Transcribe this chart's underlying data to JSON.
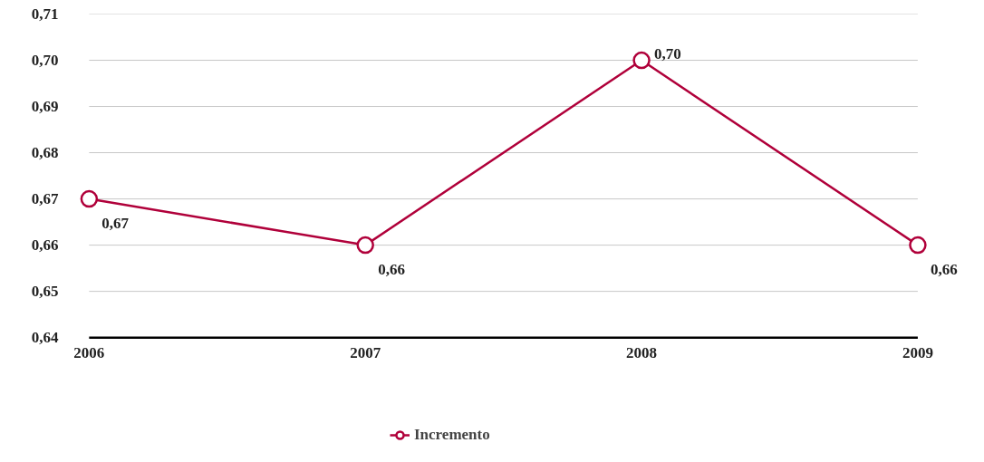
{
  "chart_data": {
    "type": "line",
    "categories": [
      "2006",
      "2007",
      "2008",
      "2009"
    ],
    "series": [
      {
        "name": "Incremento",
        "color": "#b0003a",
        "values": [
          0.67,
          0.66,
          0.7,
          0.66
        ],
        "value_labels": [
          "0,67",
          "0,66",
          "0,70",
          "0,66"
        ]
      }
    ],
    "ylim": [
      0.64,
      0.71
    ],
    "yticks": [
      {
        "value": 0.64,
        "label": "0,64"
      },
      {
        "value": 0.65,
        "label": "0,65"
      },
      {
        "value": 0.66,
        "label": "0,66"
      },
      {
        "value": 0.67,
        "label": "0,67"
      },
      {
        "value": 0.68,
        "label": "0,68"
      },
      {
        "value": 0.69,
        "label": "0,69"
      },
      {
        "value": 0.7,
        "label": "0,70"
      },
      {
        "value": 0.71,
        "label": "0,71"
      }
    ],
    "grid": "y",
    "legend": "bottom",
    "marker": "circle",
    "line_style": "solid"
  }
}
